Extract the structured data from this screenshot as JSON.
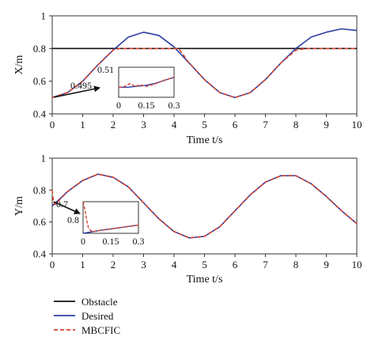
{
  "chart_data": [
    {
      "type": "line",
      "xlabel": "Time t/s",
      "ylabel": "X/m",
      "xlim": [
        0,
        10
      ],
      "ylim": [
        0.4,
        1.0
      ],
      "x_ticks": [
        "0",
        "1",
        "2",
        "3",
        "4",
        "5",
        "6",
        "7",
        "8",
        "9",
        "10"
      ],
      "y_ticks": [
        "0.4",
        "0.6",
        "0.8",
        "1"
      ],
      "series": [
        {
          "name": "Obstacle",
          "color": "#111111",
          "x": [
            0,
            10
          ],
          "y": [
            0.8,
            0.8
          ]
        },
        {
          "name": "Desired",
          "color": "#2e3fa3",
          "x": [
            0,
            0.5,
            1,
            1.5,
            2,
            2.5,
            3,
            3.5,
            4,
            4.5,
            5,
            5.5,
            6,
            6.5,
            7,
            7.5,
            8,
            8.5,
            9,
            9.5,
            10
          ],
          "y": [
            0.5,
            0.53,
            0.6,
            0.7,
            0.79,
            0.87,
            0.9,
            0.88,
            0.81,
            0.71,
            0.61,
            0.53,
            0.5,
            0.53,
            0.61,
            0.71,
            0.8,
            0.87,
            0.9,
            0.92,
            0.91
          ]
        },
        {
          "name": "MBCFIC",
          "color": "#d9402b",
          "x": [
            0,
            0.5,
            1,
            1.5,
            2,
            2.2,
            4.15,
            4.5,
            5,
            5.5,
            6,
            6.5,
            7,
            7.5,
            8,
            8.35,
            10
          ],
          "y": [
            0.5,
            0.53,
            0.6,
            0.7,
            0.79,
            0.8,
            0.8,
            0.71,
            0.61,
            0.53,
            0.5,
            0.53,
            0.61,
            0.71,
            0.79,
            0.8,
            0.8
          ]
        }
      ],
      "inset": {
        "xlim": [
          0,
          0.3
        ],
        "ylim": [
          0.495,
          0.51
        ],
        "x_ticks": [
          "0",
          "0.15",
          "0.3"
        ],
        "y_ticks": [
          "0.51",
          "0.495"
        ],
        "series": [
          {
            "name": "Desired",
            "x": [
              0,
              0.05,
              0.1,
              0.15,
              0.2,
              0.25,
              0.3
            ],
            "y": [
              0.5,
              0.5,
              0.5005,
              0.501,
              0.502,
              0.5035,
              0.505
            ]
          },
          {
            "name": "MBCFIC",
            "x": [
              0,
              0.03,
              0.06,
              0.09,
              0.12,
              0.15,
              0.2,
              0.25,
              0.3
            ],
            "y": [
              0.5,
              0.5003,
              0.5018,
              0.5005,
              0.5012,
              0.5004,
              0.5018,
              0.5036,
              0.505
            ]
          }
        ]
      }
    },
    {
      "type": "line",
      "xlabel": "Time t/s",
      "ylabel": "Y/m",
      "xlim": [
        0,
        10
      ],
      "ylim": [
        0.4,
        1.0
      ],
      "x_ticks": [
        "0",
        "1",
        "2",
        "3",
        "4",
        "5",
        "6",
        "7",
        "8",
        "9",
        "10"
      ],
      "y_ticks": [
        "0.4",
        "0.6",
        "0.8",
        "1"
      ],
      "series": [
        {
          "name": "Desired",
          "color": "#2e3fa3",
          "x": [
            0,
            0.5,
            1,
            1.5,
            2,
            2.5,
            3,
            3.5,
            4,
            4.5,
            5,
            5.5,
            6,
            6.5,
            7,
            7.5,
            8,
            8.5,
            9,
            9.5,
            10
          ],
          "y": [
            0.7,
            0.79,
            0.86,
            0.9,
            0.88,
            0.82,
            0.72,
            0.62,
            0.54,
            0.5,
            0.51,
            0.57,
            0.67,
            0.77,
            0.85,
            0.89,
            0.89,
            0.84,
            0.76,
            0.67,
            0.59
          ]
        },
        {
          "name": "MBCFIC",
          "color": "#d9402b",
          "x": [
            0,
            0.02,
            0.05,
            0.1,
            0.5,
            1,
            1.5,
            2,
            2.5,
            3,
            3.5,
            4,
            4.5,
            5,
            5.5,
            6,
            6.5,
            7,
            7.5,
            8,
            8.5,
            9,
            9.5,
            10
          ],
          "y": [
            0.8,
            0.76,
            0.72,
            0.71,
            0.79,
            0.86,
            0.9,
            0.88,
            0.82,
            0.72,
            0.62,
            0.54,
            0.5,
            0.51,
            0.57,
            0.67,
            0.77,
            0.85,
            0.89,
            0.89,
            0.84,
            0.76,
            0.67,
            0.59
          ]
        }
      ],
      "inset": {
        "xlim": [
          0,
          0.3
        ],
        "ylim": [
          0.7,
          0.8
        ],
        "x_ticks": [
          "0",
          "0.15",
          "0.3"
        ],
        "y_ticks": [
          "0.8",
          "0.7"
        ],
        "series": [
          {
            "name": "Desired",
            "x": [
              0,
              0.05,
              0.1,
              0.15,
              0.2,
              0.25,
              0.3
            ],
            "y": [
              0.7,
              0.705,
              0.71,
              0.714,
              0.718,
              0.722,
              0.726
            ]
          },
          {
            "name": "MBCFIC",
            "x": [
              0,
              0.01,
              0.02,
              0.03,
              0.05,
              0.1,
              0.15,
              0.2,
              0.25,
              0.3
            ],
            "y": [
              0.8,
              0.775,
              0.74,
              0.715,
              0.705,
              0.71,
              0.714,
              0.718,
              0.722,
              0.726
            ]
          }
        ]
      }
    }
  ],
  "legend": {
    "items": [
      {
        "label": "Obstacle",
        "color": "#111111",
        "dash": "solid"
      },
      {
        "label": "Desired",
        "color": "#2e3fa3",
        "dash": "solid"
      },
      {
        "label": "MBCFIC",
        "color": "#d9402b",
        "dash": "dashed"
      }
    ]
  }
}
